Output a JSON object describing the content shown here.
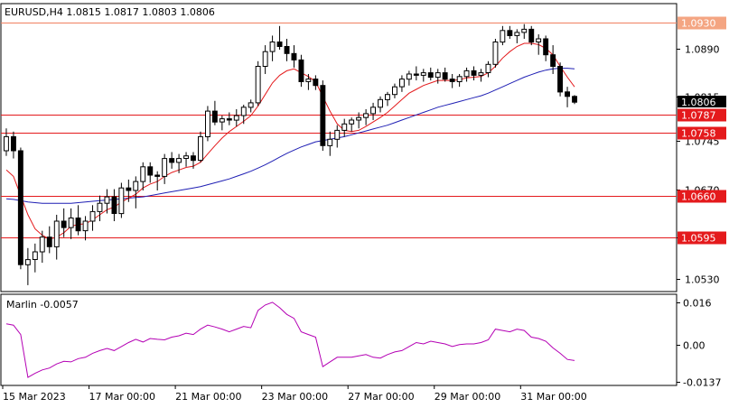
{
  "header": {
    "symbol_line": "EURUSD,H4  1.0815 1.0817 1.0803 1.0806"
  },
  "indicator": {
    "label": "Marlin -0.0057",
    "ticks": [
      "0.016",
      "0.00",
      "-0.0137"
    ]
  },
  "price_axis": {
    "ticks": [
      "1.0890",
      "1.0815",
      "1.0745",
      "1.0670",
      "1.0595",
      "1.0530"
    ]
  },
  "time_axis": {
    "labels": [
      "15 Mar 2023",
      "17 Mar 00:00",
      "21 Mar 00:00",
      "23 Mar 00:00",
      "27 Mar 00:00",
      "29 Mar 00:00",
      "31 Mar 00:00"
    ]
  },
  "levels": [
    {
      "price": 1.093,
      "label": "1.0930",
      "color": "#f4a582",
      "text_color": "#ffffff",
      "line": "#f08060"
    },
    {
      "price": 1.0787,
      "label": "1.0787",
      "color": "#e41a1c",
      "text_color": "#ffffff",
      "line": "#e41a1c"
    },
    {
      "price": 1.0758,
      "label": "1.0758",
      "color": "#e41a1c",
      "text_color": "#ffffff",
      "line": "#e41a1c"
    },
    {
      "price": 1.066,
      "label": "1.0660",
      "color": "#e41a1c",
      "text_color": "#ffffff",
      "line": "#e41a1c"
    },
    {
      "price": 1.0595,
      "label": "1.0595",
      "color": "#e41a1c",
      "text_color": "#ffffff",
      "line": "#e41a1c"
    }
  ],
  "current_price": {
    "label": "1.0806",
    "price": 1.0806
  },
  "colors": {
    "bull": "#ffffff",
    "bear": "#000000",
    "ma_fast": "#e41a1c",
    "ma_slow": "#1f1fb4",
    "oscillator": "#b400b4",
    "grid": "#000000"
  },
  "chart_data": {
    "type": "candlestick",
    "symbol": "EURUSD",
    "timeframe": "H4",
    "ylim": [
      1.051,
      1.096
    ],
    "x_labels": [
      "15 Mar 2023",
      "17 Mar 00:00",
      "21 Mar 00:00",
      "23 Mar 00:00",
      "27 Mar 00:00",
      "29 Mar 00:00",
      "31 Mar 00:00"
    ],
    "candles": [
      [
        1.073,
        1.0765,
        1.0722,
        1.0752
      ],
      [
        1.0752,
        1.076,
        1.0718,
        1.073
      ],
      [
        1.073,
        1.0735,
        1.0545,
        1.0552
      ],
      [
        1.0552,
        1.0578,
        1.052,
        1.056
      ],
      [
        1.056,
        1.0585,
        1.054,
        1.0572
      ],
      [
        1.0572,
        1.0605,
        1.0555,
        1.0595
      ],
      [
        1.0595,
        1.0612,
        1.057,
        1.058
      ],
      [
        1.058,
        1.063,
        1.056,
        1.062
      ],
      [
        1.062,
        1.064,
        1.0595,
        1.061
      ],
      [
        1.061,
        1.064,
        1.0592,
        1.0625
      ],
      [
        1.0625,
        1.0645,
        1.0598,
        1.0605
      ],
      [
        1.0605,
        1.0628,
        1.059,
        1.062
      ],
      [
        1.062,
        1.0645,
        1.0605,
        1.0635
      ],
      [
        1.0635,
        1.066,
        1.062,
        1.0648
      ],
      [
        1.0648,
        1.067,
        1.0632,
        1.0658
      ],
      [
        1.0658,
        1.067,
        1.062,
        1.0632
      ],
      [
        1.0632,
        1.068,
        1.0625,
        1.0672
      ],
      [
        1.0672,
        1.0685,
        1.065,
        1.0668
      ],
      [
        1.0668,
        1.069,
        1.064,
        1.0682
      ],
      [
        1.0682,
        1.0712,
        1.0668,
        1.0705
      ],
      [
        1.0705,
        1.0712,
        1.068,
        1.0692
      ],
      [
        1.0692,
        1.0698,
        1.0668,
        1.069
      ],
      [
        1.069,
        1.0725,
        1.0678,
        1.0718
      ],
      [
        1.0718,
        1.0728,
        1.0702,
        1.0712
      ],
      [
        1.0712,
        1.0725,
        1.0695,
        1.0718
      ],
      [
        1.0718,
        1.0728,
        1.0705,
        1.0722
      ],
      [
        1.0722,
        1.0728,
        1.0702,
        1.0715
      ],
      [
        1.0715,
        1.076,
        1.0712,
        1.0752
      ],
      [
        1.0752,
        1.08,
        1.0745,
        1.0792
      ],
      [
        1.0792,
        1.0808,
        1.077,
        1.0775
      ],
      [
        1.0775,
        1.0785,
        1.0762,
        1.078
      ],
      [
        1.078,
        1.079,
        1.077,
        1.0778
      ],
      [
        1.0778,
        1.0795,
        1.0768,
        1.0785
      ],
      [
        1.0785,
        1.0802,
        1.0772,
        1.0798
      ],
      [
        1.0798,
        1.081,
        1.079,
        1.0805
      ],
      [
        1.0805,
        1.087,
        1.08,
        1.0862
      ],
      [
        1.0862,
        1.0895,
        1.085,
        1.0885
      ],
      [
        1.0885,
        1.091,
        1.087,
        1.09
      ],
      [
        1.09,
        1.0925,
        1.0888,
        1.0893
      ],
      [
        1.0893,
        1.0905,
        1.087,
        1.0882
      ],
      [
        1.0882,
        1.0895,
        1.086,
        1.0872
      ],
      [
        1.0872,
        1.088,
        1.083,
        1.0838
      ],
      [
        1.0838,
        1.085,
        1.0825,
        1.0842
      ],
      [
        1.0842,
        1.0848,
        1.0825,
        1.0832
      ],
      [
        1.0832,
        1.084,
        1.073,
        1.0738
      ],
      [
        1.0738,
        1.076,
        1.0722,
        1.0748
      ],
      [
        1.0748,
        1.077,
        1.0735,
        1.0762
      ],
      [
        1.0762,
        1.078,
        1.0752,
        1.0772
      ],
      [
        1.0772,
        1.0782,
        1.076,
        1.0778
      ],
      [
        1.0778,
        1.079,
        1.0765,
        1.0782
      ],
      [
        1.0782,
        1.0795,
        1.077,
        1.0788
      ],
      [
        1.0788,
        1.0805,
        1.0778,
        1.0798
      ],
      [
        1.0798,
        1.0815,
        1.079,
        1.081
      ],
      [
        1.081,
        1.0822,
        1.08,
        1.0818
      ],
      [
        1.0818,
        1.0835,
        1.0812,
        1.083
      ],
      [
        1.083,
        1.0848,
        1.0822,
        1.0842
      ],
      [
        1.0842,
        1.0855,
        1.0832,
        1.085
      ],
      [
        1.085,
        1.0862,
        1.084,
        1.0848
      ],
      [
        1.0848,
        1.0858,
        1.0838,
        1.0852
      ],
      [
        1.0852,
        1.086,
        1.084,
        1.0845
      ],
      [
        1.0845,
        1.0858,
        1.0835,
        1.0852
      ],
      [
        1.0852,
        1.086,
        1.0838,
        1.0842
      ],
      [
        1.0842,
        1.085,
        1.0828,
        1.0838
      ],
      [
        1.0838,
        1.085,
        1.083,
        1.0846
      ],
      [
        1.0846,
        1.086,
        1.0838,
        1.0855
      ],
      [
        1.0855,
        1.0862,
        1.084,
        1.0848
      ],
      [
        1.0848,
        1.0858,
        1.0838,
        1.0852
      ],
      [
        1.0852,
        1.087,
        1.0845,
        1.0865
      ],
      [
        1.0865,
        1.0905,
        1.086,
        1.09
      ],
      [
        1.09,
        1.0925,
        1.0895,
        1.0918
      ],
      [
        1.0918,
        1.0925,
        1.0905,
        1.091
      ],
      [
        1.091,
        1.092,
        1.0898,
        1.0915
      ],
      [
        1.0915,
        1.0928,
        1.0905,
        1.092
      ],
      [
        1.092,
        1.0925,
        1.0895,
        1.09
      ],
      [
        1.09,
        1.0912,
        1.088,
        1.0905
      ],
      [
        1.0905,
        1.091,
        1.087,
        1.088
      ],
      [
        1.088,
        1.0895,
        1.085,
        1.0862
      ],
      [
        1.0862,
        1.0868,
        1.0815,
        1.0822
      ],
      [
        1.0822,
        1.083,
        1.0798,
        1.0815
      ],
      [
        1.0815,
        1.0817,
        1.0803,
        1.0806
      ]
    ],
    "ma_fast": [
      1.07,
      1.069,
      1.066,
      1.063,
      1.0608,
      1.0598,
      1.0592,
      1.0595,
      1.0602,
      1.0612,
      1.0615,
      1.0616,
      1.0622,
      1.063,
      1.0638,
      1.0642,
      1.065,
      1.0656,
      1.0662,
      1.0672,
      1.0678,
      1.0682,
      1.069,
      1.0696,
      1.07,
      1.0704,
      1.0706,
      1.0712,
      1.0725,
      1.0738,
      1.075,
      1.076,
      1.0768,
      1.0776,
      1.0785,
      1.08,
      1.0818,
      1.0836,
      1.0848,
      1.0855,
      1.0858,
      1.0852,
      1.0846,
      1.0838,
      1.0815,
      1.0792,
      1.0772,
      1.0762,
      1.076,
      1.0762,
      1.0768,
      1.0775,
      1.0782,
      1.079,
      1.08,
      1.081,
      1.082,
      1.0826,
      1.0832,
      1.0836,
      1.084,
      1.084,
      1.084,
      1.0841,
      1.0844,
      1.0845,
      1.0846,
      1.0852,
      1.0862,
      1.0875,
      1.0885,
      1.0893,
      1.0898,
      1.0898,
      1.0896,
      1.089,
      1.088,
      1.0862,
      1.0845,
      1.083
    ],
    "ma_slow": [
      1.0655,
      1.0654,
      1.0652,
      1.065,
      1.0649,
      1.0648,
      1.0648,
      1.0648,
      1.0648,
      1.0648,
      1.0649,
      1.065,
      1.0651,
      1.0652,
      1.0653,
      1.0654,
      1.0655,
      1.0656,
      1.0657,
      1.0658,
      1.066,
      1.0662,
      1.0664,
      1.0666,
      1.0668,
      1.067,
      1.0672,
      1.0674,
      1.0677,
      1.068,
      1.0683,
      1.0686,
      1.069,
      1.0694,
      1.0698,
      1.0703,
      1.0708,
      1.0714,
      1.072,
      1.0726,
      1.0731,
      1.0736,
      1.074,
      1.0744,
      1.0746,
      1.0748,
      1.075,
      1.0752,
      1.0755,
      1.0758,
      1.0761,
      1.0764,
      1.0767,
      1.077,
      1.0774,
      1.0778,
      1.0782,
      1.0786,
      1.079,
      1.0794,
      1.0798,
      1.0801,
      1.0804,
      1.0807,
      1.081,
      1.0813,
      1.0816,
      1.082,
      1.0825,
      1.083,
      1.0835,
      1.084,
      1.0845,
      1.0849,
      1.0853,
      1.0856,
      1.0858,
      1.0859,
      1.0859,
      1.0858
    ],
    "oscillator": {
      "name": "Marlin",
      "ylim": [
        -0.015,
        0.019
      ],
      "ticks": [
        0.016,
        0.0,
        -0.0137
      ],
      "values": [
        0.008,
        0.0075,
        0.004,
        -0.012,
        -0.0105,
        -0.0092,
        -0.0085,
        -0.007,
        -0.006,
        -0.0062,
        -0.005,
        -0.0045,
        -0.003,
        -0.002,
        -0.0012,
        -0.002,
        -0.0005,
        0.001,
        0.0022,
        0.0012,
        0.0025,
        0.0022,
        0.002,
        0.003,
        0.0035,
        0.0045,
        0.004,
        0.006,
        0.0075,
        0.0068,
        0.006,
        0.005,
        0.006,
        0.007,
        0.0065,
        0.013,
        0.015,
        0.016,
        0.014,
        0.0115,
        0.01,
        0.005,
        0.004,
        0.003,
        -0.008,
        -0.0062,
        -0.0045,
        -0.0045,
        -0.0045,
        -0.004,
        -0.0035,
        -0.0045,
        -0.0048,
        -0.0035,
        -0.0025,
        -0.002,
        -0.0005,
        0.001,
        0.0005,
        0.0015,
        0.001,
        0.0005,
        -0.0005,
        0.0002,
        0.0005,
        0.0005,
        0.001,
        0.002,
        0.006,
        0.0055,
        0.005,
        0.006,
        0.0055,
        0.003,
        0.0025,
        0.0015,
        -0.001,
        -0.003,
        -0.0053,
        -0.0057
      ]
    }
  }
}
